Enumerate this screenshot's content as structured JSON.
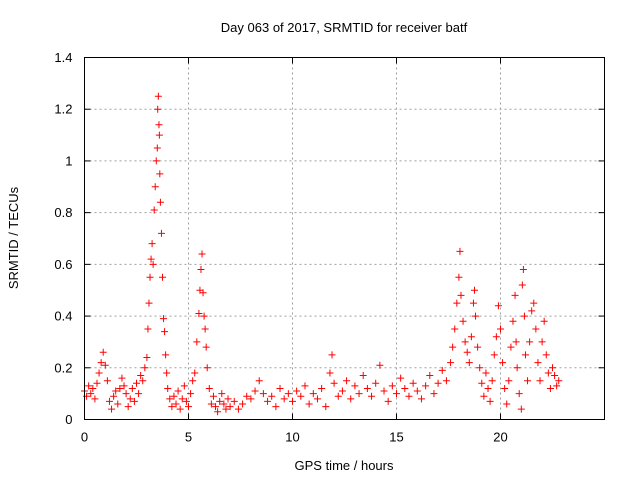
{
  "chart_data": {
    "type": "scatter",
    "title": "Day 063 of 2017, SRMTID for receiver batf",
    "xlabel": "GPS time / hours",
    "ylabel": "SRMTID / TECUs",
    "xlim": [
      0,
      25
    ],
    "ylim": [
      0,
      1.4
    ],
    "xticks": [
      0,
      5,
      10,
      15,
      20
    ],
    "xtick_labels": [
      "0",
      "5",
      "10",
      "15",
      "20"
    ],
    "yticks": [
      0,
      0.2,
      0.4,
      0.6,
      0.8,
      1.0,
      1.2,
      1.4
    ],
    "ytick_labels": [
      "0",
      "0.2",
      "0.4",
      "0.6",
      "0.8",
      "1",
      "1.2",
      "1.4"
    ],
    "grid": true,
    "marker": "+",
    "color": "#ff0000",
    "series": [
      {
        "name": "batf",
        "points": [
          [
            0.0,
            0.11
          ],
          [
            0.1,
            0.09
          ],
          [
            0.2,
            0.13
          ],
          [
            0.3,
            0.1
          ],
          [
            0.4,
            0.12
          ],
          [
            0.5,
            0.08
          ],
          [
            0.6,
            0.14
          ],
          [
            0.7,
            0.18
          ],
          [
            0.8,
            0.22
          ],
          [
            0.9,
            0.26
          ],
          [
            1.0,
            0.21
          ],
          [
            1.1,
            0.15
          ],
          [
            1.2,
            0.07
          ],
          [
            1.3,
            0.04
          ],
          [
            1.4,
            0.09
          ],
          [
            1.5,
            0.11
          ],
          [
            1.6,
            0.06
          ],
          [
            1.7,
            0.12
          ],
          [
            1.8,
            0.16
          ],
          [
            1.9,
            0.13
          ],
          [
            2.0,
            0.1
          ],
          [
            2.1,
            0.05
          ],
          [
            2.2,
            0.08
          ],
          [
            2.3,
            0.12
          ],
          [
            2.4,
            0.07
          ],
          [
            2.5,
            0.14
          ],
          [
            2.6,
            0.1
          ],
          [
            2.7,
            0.17
          ],
          [
            2.8,
            0.15
          ],
          [
            2.9,
            0.2
          ],
          [
            3.0,
            0.24
          ],
          [
            3.05,
            0.35
          ],
          [
            3.1,
            0.45
          ],
          [
            3.15,
            0.55
          ],
          [
            3.2,
            0.62
          ],
          [
            3.25,
            0.68
          ],
          [
            3.3,
            0.6
          ],
          [
            3.35,
            0.81
          ],
          [
            3.4,
            0.9
          ],
          [
            3.45,
            1.0
          ],
          [
            3.5,
            1.05
          ],
          [
            3.52,
            1.2
          ],
          [
            3.55,
            1.25
          ],
          [
            3.58,
            1.14
          ],
          [
            3.6,
            1.1
          ],
          [
            3.62,
            0.95
          ],
          [
            3.65,
            0.84
          ],
          [
            3.7,
            0.72
          ],
          [
            3.75,
            0.55
          ],
          [
            3.8,
            0.39
          ],
          [
            3.85,
            0.34
          ],
          [
            3.9,
            0.25
          ],
          [
            3.95,
            0.18
          ],
          [
            4.0,
            0.12
          ],
          [
            4.1,
            0.08
          ],
          [
            4.2,
            0.05
          ],
          [
            4.3,
            0.09
          ],
          [
            4.4,
            0.06
          ],
          [
            4.5,
            0.11
          ],
          [
            4.6,
            0.04
          ],
          [
            4.7,
            0.08
          ],
          [
            4.8,
            0.13
          ],
          [
            4.9,
            0.07
          ],
          [
            5.0,
            0.05
          ],
          [
            5.1,
            0.1
          ],
          [
            5.2,
            0.15
          ],
          [
            5.3,
            0.18
          ],
          [
            5.4,
            0.3
          ],
          [
            5.5,
            0.41
          ],
          [
            5.55,
            0.5
          ],
          [
            5.6,
            0.58
          ],
          [
            5.65,
            0.64
          ],
          [
            5.7,
            0.49
          ],
          [
            5.75,
            0.4
          ],
          [
            5.8,
            0.35
          ],
          [
            5.85,
            0.28
          ],
          [
            5.9,
            0.2
          ],
          [
            6.0,
            0.12
          ],
          [
            6.1,
            0.06
          ],
          [
            6.2,
            0.09
          ],
          [
            6.3,
            0.05
          ],
          [
            6.4,
            0.03
          ],
          [
            6.5,
            0.07
          ],
          [
            6.6,
            0.1
          ],
          [
            6.7,
            0.06
          ],
          [
            6.8,
            0.04
          ],
          [
            6.9,
            0.08
          ],
          [
            7.0,
            0.05
          ],
          [
            7.2,
            0.07
          ],
          [
            7.4,
            0.04
          ],
          [
            7.6,
            0.06
          ],
          [
            7.8,
            0.09
          ],
          [
            8.0,
            0.08
          ],
          [
            8.2,
            0.11
          ],
          [
            8.4,
            0.15
          ],
          [
            8.6,
            0.1
          ],
          [
            8.8,
            0.07
          ],
          [
            9.0,
            0.09
          ],
          [
            9.2,
            0.05
          ],
          [
            9.4,
            0.12
          ],
          [
            9.6,
            0.08
          ],
          [
            9.8,
            0.1
          ],
          [
            10.0,
            0.07
          ],
          [
            10.2,
            0.11
          ],
          [
            10.4,
            0.09
          ],
          [
            10.6,
            0.13
          ],
          [
            10.8,
            0.06
          ],
          [
            11.0,
            0.1
          ],
          [
            11.2,
            0.08
          ],
          [
            11.4,
            0.12
          ],
          [
            11.6,
            0.05
          ],
          [
            11.8,
            0.18
          ],
          [
            11.9,
            0.25
          ],
          [
            12.0,
            0.14
          ],
          [
            12.2,
            0.09
          ],
          [
            12.4,
            0.11
          ],
          [
            12.6,
            0.15
          ],
          [
            12.8,
            0.08
          ],
          [
            13.0,
            0.13
          ],
          [
            13.2,
            0.1
          ],
          [
            13.4,
            0.17
          ],
          [
            13.6,
            0.12
          ],
          [
            13.8,
            0.09
          ],
          [
            14.0,
            0.14
          ],
          [
            14.2,
            0.21
          ],
          [
            14.4,
            0.11
          ],
          [
            14.6,
            0.07
          ],
          [
            14.8,
            0.13
          ],
          [
            15.0,
            0.1
          ],
          [
            15.2,
            0.16
          ],
          [
            15.4,
            0.12
          ],
          [
            15.6,
            0.09
          ],
          [
            15.8,
            0.14
          ],
          [
            16.0,
            0.11
          ],
          [
            16.2,
            0.08
          ],
          [
            16.4,
            0.13
          ],
          [
            16.6,
            0.17
          ],
          [
            16.8,
            0.1
          ],
          [
            17.0,
            0.14
          ],
          [
            17.2,
            0.19
          ],
          [
            17.4,
            0.15
          ],
          [
            17.6,
            0.22
          ],
          [
            17.7,
            0.28
          ],
          [
            17.8,
            0.35
          ],
          [
            17.9,
            0.45
          ],
          [
            18.0,
            0.55
          ],
          [
            18.05,
            0.65
          ],
          [
            18.1,
            0.48
          ],
          [
            18.2,
            0.38
          ],
          [
            18.3,
            0.3
          ],
          [
            18.4,
            0.26
          ],
          [
            18.5,
            0.22
          ],
          [
            18.6,
            0.32
          ],
          [
            18.7,
            0.45
          ],
          [
            18.75,
            0.5
          ],
          [
            18.8,
            0.4
          ],
          [
            18.9,
            0.28
          ],
          [
            19.0,
            0.2
          ],
          [
            19.1,
            0.14
          ],
          [
            19.2,
            0.09
          ],
          [
            19.3,
            0.18
          ],
          [
            19.4,
            0.12
          ],
          [
            19.5,
            0.07
          ],
          [
            19.6,
            0.15
          ],
          [
            19.7,
            0.25
          ],
          [
            19.8,
            0.32
          ],
          [
            19.9,
            0.44
          ],
          [
            20.0,
            0.35
          ],
          [
            20.1,
            0.22
          ],
          [
            20.2,
            0.12
          ],
          [
            20.3,
            0.06
          ],
          [
            20.4,
            0.15
          ],
          [
            20.5,
            0.28
          ],
          [
            20.6,
            0.38
          ],
          [
            20.7,
            0.48
          ],
          [
            20.75,
            0.3
          ],
          [
            20.8,
            0.2
          ],
          [
            20.9,
            0.1
          ],
          [
            21.0,
            0.04
          ],
          [
            21.05,
            0.52
          ],
          [
            21.1,
            0.58
          ],
          [
            21.15,
            0.4
          ],
          [
            21.2,
            0.25
          ],
          [
            21.3,
            0.15
          ],
          [
            21.4,
            0.3
          ],
          [
            21.5,
            0.42
          ],
          [
            21.6,
            0.45
          ],
          [
            21.7,
            0.35
          ],
          [
            21.8,
            0.22
          ],
          [
            21.9,
            0.15
          ],
          [
            22.0,
            0.3
          ],
          [
            22.1,
            0.38
          ],
          [
            22.2,
            0.25
          ],
          [
            22.3,
            0.18
          ],
          [
            22.4,
            0.12
          ],
          [
            22.5,
            0.2
          ],
          [
            22.6,
            0.17
          ],
          [
            22.7,
            0.13
          ],
          [
            22.8,
            0.15
          ]
        ]
      }
    ]
  }
}
